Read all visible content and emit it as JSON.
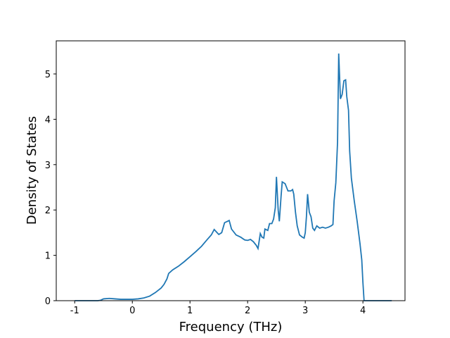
{
  "chart_data": {
    "type": "line",
    "xlabel": "Frequency (THz)",
    "ylabel": "Density of States",
    "x": [
      -1,
      -0.6,
      -0.55,
      -0.5,
      -0.4,
      -0.3,
      -0.2,
      0,
      0.1,
      0.2,
      0.3,
      0.4,
      0.5,
      0.55,
      0.6,
      0.63,
      0.7,
      0.8,
      0.9,
      1.0,
      1.1,
      1.2,
      1.3,
      1.37,
      1.42,
      1.47,
      1.5,
      1.55,
      1.6,
      1.65,
      1.68,
      1.72,
      1.8,
      1.88,
      1.95,
      2.0,
      2.05,
      2.1,
      2.15,
      2.18,
      2.22,
      2.25,
      2.28,
      2.3,
      2.35,
      2.38,
      2.42,
      2.45,
      2.48,
      2.5,
      2.53,
      2.55,
      2.58,
      2.6,
      2.65,
      2.7,
      2.75,
      2.78,
      2.8,
      2.83,
      2.86,
      2.9,
      2.95,
      2.98,
      3.0,
      3.02,
      3.04,
      3.07,
      3.1,
      3.13,
      3.16,
      3.2,
      3.25,
      3.3,
      3.35,
      3.4,
      3.45,
      3.48,
      3.5,
      3.53,
      3.56,
      3.58,
      3.61,
      3.64,
      3.67,
      3.7,
      3.72,
      3.75,
      3.77,
      3.8,
      3.85,
      3.9,
      3.95,
      3.98,
      4.0,
      4.02,
      4.5
    ],
    "series": [
      {
        "color": "#1f77b4",
        "values": [
          0,
          0,
          0.01,
          0.04,
          0.05,
          0.04,
          0.03,
          0.03,
          0.04,
          0.06,
          0.1,
          0.18,
          0.28,
          0.36,
          0.48,
          0.6,
          0.68,
          0.76,
          0.86,
          0.97,
          1.08,
          1.2,
          1.35,
          1.45,
          1.57,
          1.5,
          1.46,
          1.5,
          1.72,
          1.75,
          1.77,
          1.58,
          1.45,
          1.4,
          1.34,
          1.33,
          1.35,
          1.3,
          1.22,
          1.15,
          1.48,
          1.4,
          1.38,
          1.58,
          1.55,
          1.7,
          1.7,
          1.8,
          2.05,
          2.73,
          2.0,
          1.75,
          2.3,
          2.62,
          2.58,
          2.42,
          2.42,
          2.45,
          2.35,
          1.95,
          1.65,
          1.45,
          1.4,
          1.38,
          1.5,
          1.85,
          2.35,
          1.95,
          1.85,
          1.6,
          1.55,
          1.65,
          1.6,
          1.62,
          1.6,
          1.62,
          1.65,
          1.68,
          2.2,
          2.6,
          3.5,
          5.45,
          4.45,
          4.55,
          4.85,
          4.87,
          4.5,
          4.2,
          3.3,
          2.7,
          2.2,
          1.75,
          1.25,
          0.9,
          0.4,
          0,
          0
        ]
      }
    ],
    "xlim": [
      -1.32,
      4.73
    ],
    "ylim": [
      0,
      5.73
    ],
    "xticks": [
      -1,
      0,
      1,
      2,
      3,
      4
    ],
    "yticks": [
      0,
      1,
      2,
      3,
      4,
      5
    ]
  }
}
